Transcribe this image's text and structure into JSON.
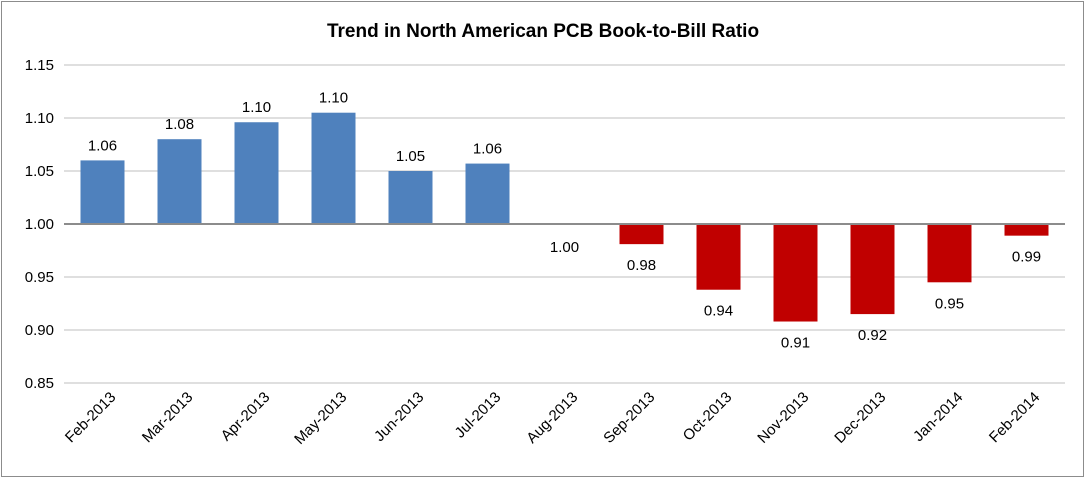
{
  "chart_data": {
    "type": "bar",
    "title": "Trend in North American PCB Book-to-Bill Ratio",
    "xlabel": "",
    "ylabel": "",
    "baseline": 1.0,
    "ylim": [
      0.85,
      1.15
    ],
    "yticks": [
      "1.15",
      "1.10",
      "1.05",
      "1.00",
      "0.95",
      "0.90",
      "0.85"
    ],
    "ytick_values": [
      1.15,
      1.1,
      1.05,
      1.0,
      0.95,
      0.9,
      0.85
    ],
    "grid": true,
    "categories": [
      "Feb-2013",
      "Mar-2013",
      "Apr-2013",
      "May-2013",
      "Jun-2013",
      "Jul-2013",
      "Aug-2013",
      "Sep-2013",
      "Oct-2013",
      "Nov-2013",
      "Dec-2013",
      "Jan-2014",
      "Feb-2014"
    ],
    "values": [
      1.06,
      1.08,
      1.096,
      1.105,
      1.05,
      1.057,
      1.0,
      0.981,
      0.938,
      0.908,
      0.915,
      0.945,
      0.989
    ],
    "labels": [
      "1.06",
      "1.08",
      "1.10",
      "1.10",
      "1.05",
      "1.06",
      "1.00",
      "0.98",
      "0.94",
      "0.91",
      "0.92",
      "0.95",
      "0.99"
    ],
    "colors": {
      "positive": "#4f81bd",
      "negative": "#c00000",
      "grid": "#bfbfbf",
      "baseline": "#8c8c8c"
    }
  }
}
